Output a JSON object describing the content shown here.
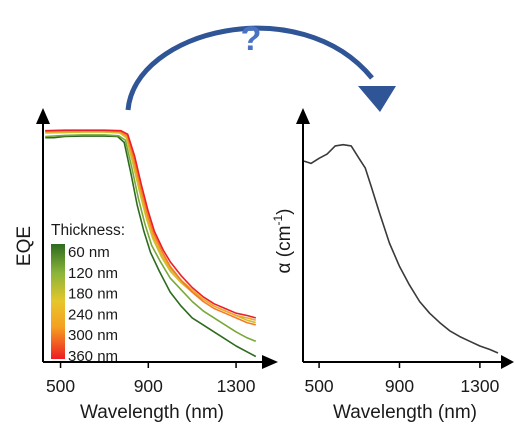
{
  "annotation": {
    "question_mark": "?",
    "arrow_color": "#2f5597"
  },
  "colors": {
    "axis": "#000000",
    "alpha_line": "#3a3a3a"
  },
  "chart_data": [
    {
      "type": "line",
      "title": "",
      "xlabel": "Wavelength (nm)",
      "ylabel": "EQE",
      "xlim": [
        420,
        1400
      ],
      "ylim": [
        0,
        1
      ],
      "x_ticks": [
        500,
        900,
        1300
      ],
      "x_tick_labels": [
        "500",
        "900",
        "1300"
      ],
      "y_ticks_visible": false,
      "legend": {
        "title": "Thickness:",
        "placement": "left-middle",
        "type": "colorbar",
        "entries": [
          "60 nm",
          "120 nm",
          "180 nm",
          "240 nm",
          "300 nm",
          "360 nm"
        ]
      },
      "series": [
        {
          "name": "60 nm",
          "color": "#2e6b1f",
          "points": [
            [
              430,
              0.95
            ],
            [
              470,
              0.95
            ],
            [
              520,
              0.955
            ],
            [
              600,
              0.957
            ],
            [
              700,
              0.957
            ],
            [
              760,
              0.955
            ],
            [
              790,
              0.93
            ],
            [
              820,
              0.8
            ],
            [
              850,
              0.66
            ],
            [
              880,
              0.55
            ],
            [
              910,
              0.46
            ],
            [
              950,
              0.38
            ],
            [
              1000,
              0.29
            ],
            [
              1050,
              0.23
            ],
            [
              1100,
              0.18
            ],
            [
              1150,
              0.15
            ],
            [
              1200,
              0.12
            ],
            [
              1250,
              0.09
            ],
            [
              1300,
              0.06
            ],
            [
              1350,
              0.035
            ],
            [
              1390,
              0.015
            ]
          ]
        },
        {
          "name": "120 nm",
          "color": "#79a838",
          "points": [
            [
              430,
              0.955
            ],
            [
              520,
              0.96
            ],
            [
              600,
              0.962
            ],
            [
              700,
              0.962
            ],
            [
              765,
              0.958
            ],
            [
              795,
              0.94
            ],
            [
              825,
              0.82
            ],
            [
              855,
              0.69
            ],
            [
              885,
              0.58
            ],
            [
              915,
              0.49
            ],
            [
              955,
              0.42
            ],
            [
              1000,
              0.35
            ],
            [
              1050,
              0.3
            ],
            [
              1100,
              0.25
            ],
            [
              1150,
              0.21
            ],
            [
              1200,
              0.18
            ],
            [
              1250,
              0.15
            ],
            [
              1300,
              0.12
            ],
            [
              1350,
              0.095
            ],
            [
              1390,
              0.08
            ]
          ]
        },
        {
          "name": "180 nm",
          "color": "#c8c230",
          "points": [
            [
              430,
              0.97
            ],
            [
              520,
              0.972
            ],
            [
              600,
              0.974
            ],
            [
              700,
              0.974
            ],
            [
              770,
              0.97
            ],
            [
              800,
              0.95
            ],
            [
              830,
              0.84
            ],
            [
              860,
              0.72
            ],
            [
              890,
              0.61
            ],
            [
              920,
              0.52
            ],
            [
              960,
              0.44
            ],
            [
              1000,
              0.38
            ],
            [
              1050,
              0.33
            ],
            [
              1100,
              0.29
            ],
            [
              1150,
              0.26
            ],
            [
              1200,
              0.23
            ],
            [
              1250,
              0.21
            ],
            [
              1300,
              0.19
            ],
            [
              1350,
              0.17
            ],
            [
              1390,
              0.16
            ]
          ]
        },
        {
          "name": "240 nm",
          "color": "#f0a828",
          "points": [
            [
              430,
              0.975
            ],
            [
              520,
              0.977
            ],
            [
              600,
              0.978
            ],
            [
              700,
              0.978
            ],
            [
              770,
              0.975
            ],
            [
              802,
              0.955
            ],
            [
              832,
              0.85
            ],
            [
              862,
              0.73
            ],
            [
              892,
              0.62
            ],
            [
              922,
              0.53
            ],
            [
              962,
              0.45
            ],
            [
              1000,
              0.39
            ],
            [
              1050,
              0.34
            ],
            [
              1100,
              0.3
            ],
            [
              1150,
              0.26
            ],
            [
              1200,
              0.23
            ],
            [
              1250,
              0.21
            ],
            [
              1300,
              0.19
            ],
            [
              1350,
              0.18
            ],
            [
              1390,
              0.17
            ]
          ]
        },
        {
          "name": "300 nm",
          "color": "#f57a26",
          "points": [
            [
              430,
              0.978
            ],
            [
              520,
              0.98
            ],
            [
              600,
              0.98
            ],
            [
              700,
              0.98
            ],
            [
              772,
              0.977
            ],
            [
              804,
              0.96
            ],
            [
              835,
              0.86
            ],
            [
              865,
              0.74
            ],
            [
              895,
              0.63
            ],
            [
              925,
              0.54
            ],
            [
              965,
              0.46
            ],
            [
              1000,
              0.4
            ],
            [
              1050,
              0.34
            ],
            [
              1100,
              0.29
            ],
            [
              1150,
              0.25
            ],
            [
              1200,
              0.22
            ],
            [
              1250,
              0.2
            ],
            [
              1300,
              0.18
            ],
            [
              1350,
              0.16
            ],
            [
              1390,
              0.15
            ]
          ]
        },
        {
          "name": "360 nm",
          "color": "#e8202a",
          "points": [
            [
              430,
              0.98
            ],
            [
              520,
              0.982
            ],
            [
              600,
              0.982
            ],
            [
              700,
              0.982
            ],
            [
              775,
              0.98
            ],
            [
              806,
              0.965
            ],
            [
              838,
              0.87
            ],
            [
              868,
              0.75
            ],
            [
              898,
              0.64
            ],
            [
              928,
              0.55
            ],
            [
              968,
              0.47
            ],
            [
              1000,
              0.42
            ],
            [
              1050,
              0.36
            ],
            [
              1100,
              0.31
            ],
            [
              1150,
              0.27
            ],
            [
              1200,
              0.24
            ],
            [
              1250,
              0.22
            ],
            [
              1300,
              0.2
            ],
            [
              1350,
              0.19
            ],
            [
              1390,
              0.18
            ]
          ]
        }
      ]
    },
    {
      "type": "line",
      "title": "",
      "xlabel": "Wavelength (nm)",
      "ylabel": "α (cm",
      "ylabel_superscript": "-1",
      "ylabel_suffix": ")",
      "xlim": [
        420,
        1400
      ],
      "ylim": [
        0,
        1
      ],
      "x_ticks": [
        500,
        900,
        1300
      ],
      "x_tick_labels": [
        "500",
        "900",
        "1300"
      ],
      "y_ticks_visible": false,
      "series": [
        {
          "color": "#3a3a3a",
          "points": [
            [
              425,
              0.85
            ],
            [
              460,
              0.84
            ],
            [
              500,
              0.862
            ],
            [
              540,
              0.88
            ],
            [
              580,
              0.915
            ],
            [
              620,
              0.92
            ],
            [
              660,
              0.915
            ],
            [
              700,
              0.86
            ],
            [
              730,
              0.82
            ],
            [
              760,
              0.74
            ],
            [
              800,
              0.63
            ],
            [
              850,
              0.5
            ],
            [
              900,
              0.4
            ],
            [
              950,
              0.32
            ],
            [
              1000,
              0.25
            ],
            [
              1050,
              0.2
            ],
            [
              1100,
              0.16
            ],
            [
              1150,
              0.125
            ],
            [
              1200,
              0.1
            ],
            [
              1250,
              0.08
            ],
            [
              1300,
              0.06
            ],
            [
              1350,
              0.045
            ],
            [
              1390,
              0.03
            ]
          ]
        }
      ]
    }
  ]
}
